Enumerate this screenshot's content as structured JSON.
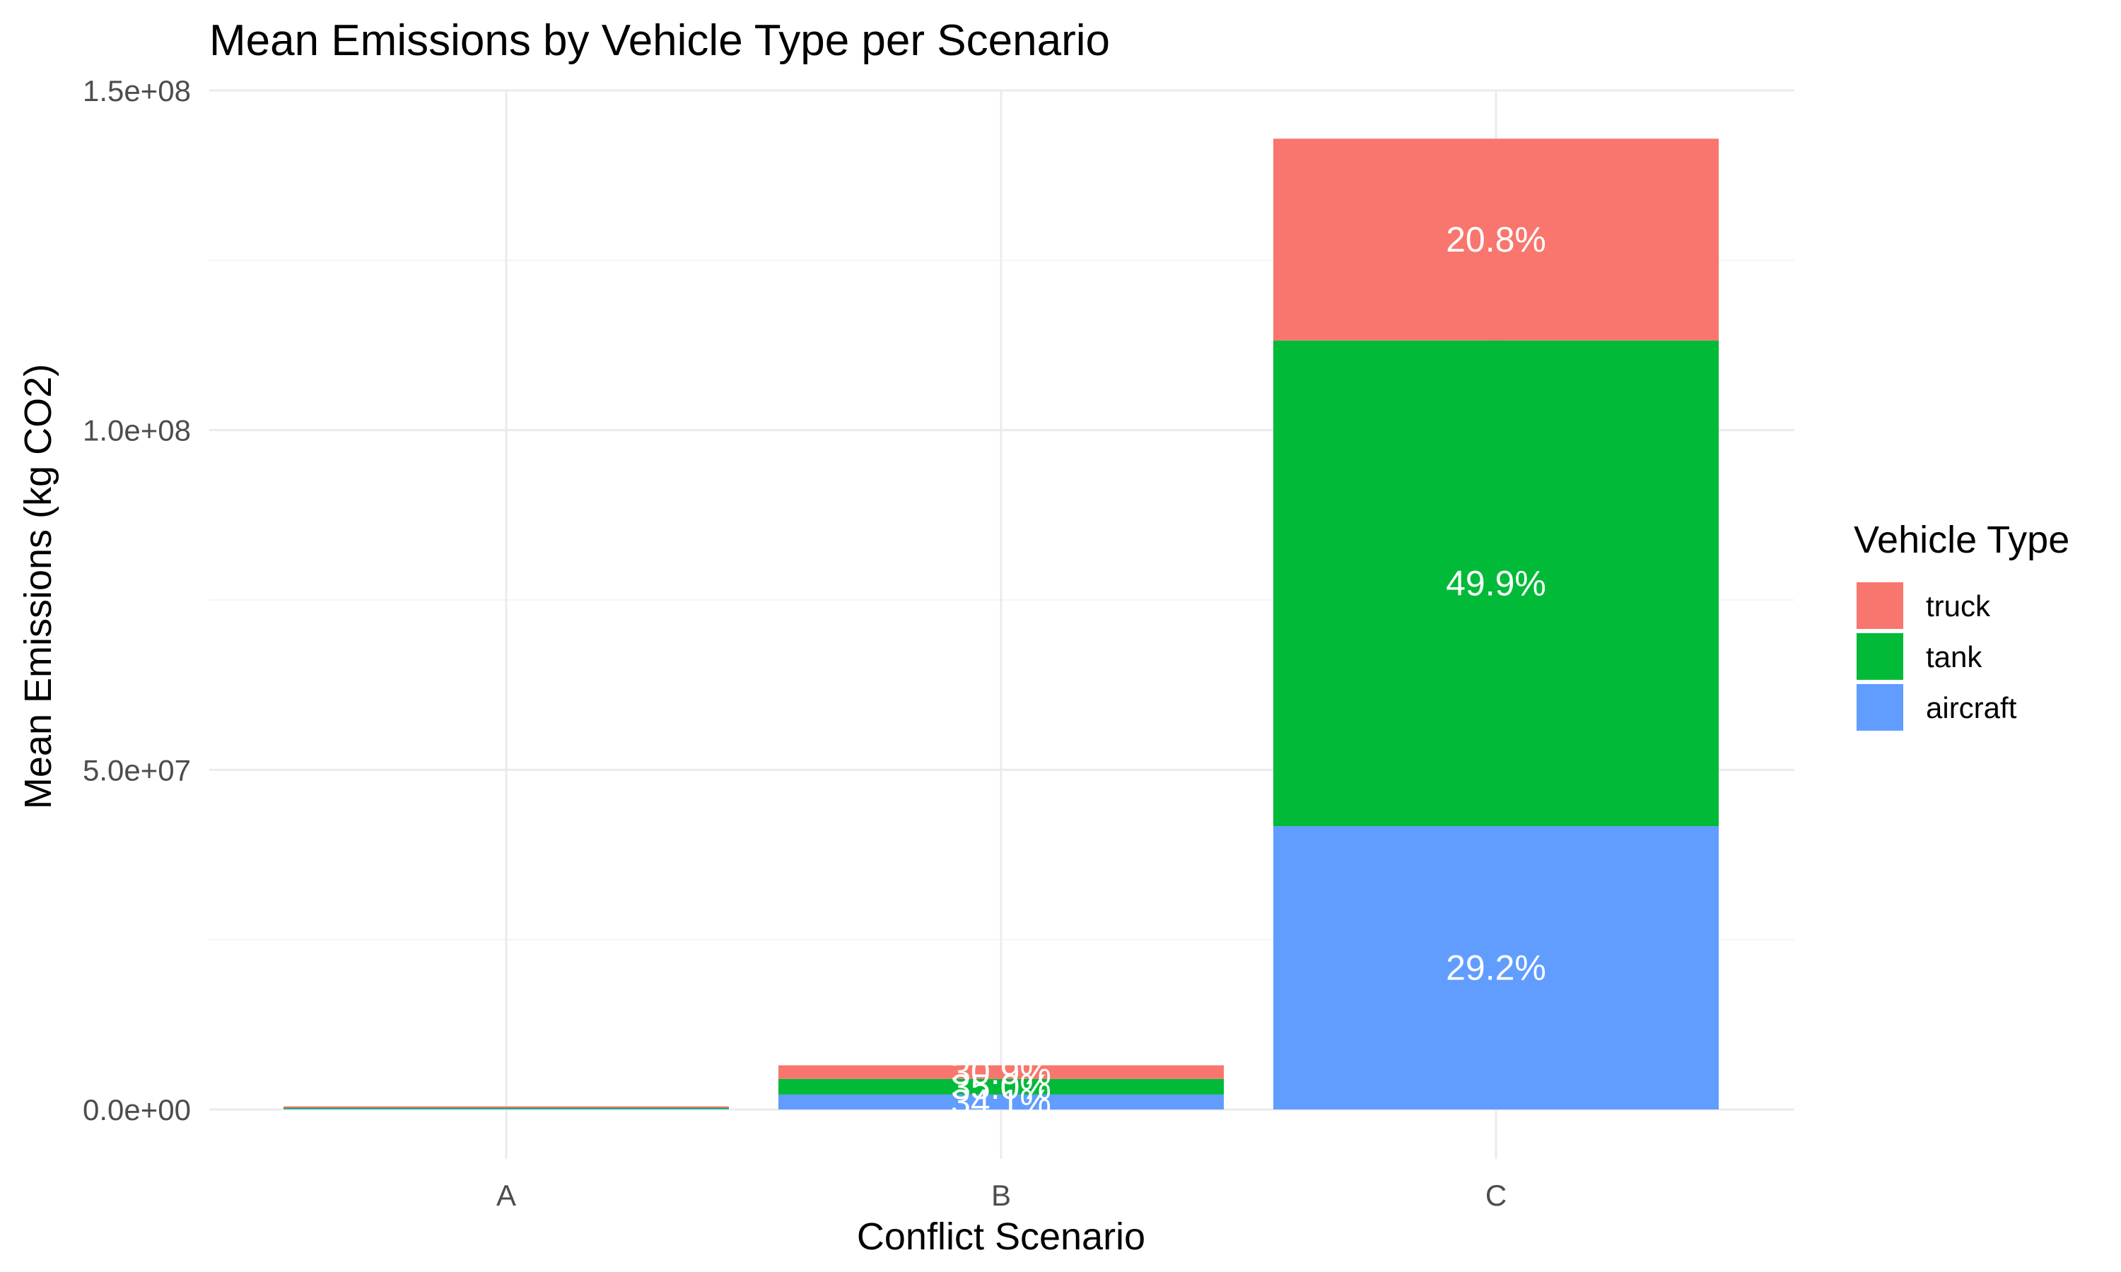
{
  "colors": {
    "truck": "#F8766D",
    "tank": "#00BA38",
    "aircraft": "#619CFF",
    "grid_major": "#EBEBEB",
    "grid_minor": "#F5F5F5"
  },
  "chart_data": {
    "type": "bar",
    "stacked": true,
    "title": "Mean Emissions by Vehicle Type per Scenario",
    "xlabel": "Conflict Scenario",
    "ylabel": "Mean Emissions (kg CO2)",
    "categories": [
      "A",
      "B",
      "C"
    ],
    "ylim": [
      0,
      150000000
    ],
    "yticks": [
      0,
      50000000,
      100000000,
      150000000
    ],
    "ytick_labels": [
      "0.0e+00",
      "5.0e+07",
      "1.0e+08",
      "1.5e+08"
    ],
    "grid": true,
    "legend_title": "Vehicle Type",
    "legend_position": "right",
    "legend_order": [
      "truck",
      "tank",
      "aircraft"
    ],
    "stack_order": [
      "aircraft",
      "tank",
      "truck"
    ],
    "series": [
      {
        "name": "aircraft",
        "values": [
          100000,
          2200000,
          41700000
        ],
        "labels": [
          "",
          "34.1%",
          "29.2%"
        ]
      },
      {
        "name": "tank",
        "values": [
          150000,
          2300000,
          71500000
        ],
        "labels": [
          "",
          "35.0%",
          "49.9%"
        ]
      },
      {
        "name": "truck",
        "values": [
          50000,
          2000000,
          29700000
        ],
        "labels": [
          "",
          "30.9%",
          "20.8%"
        ]
      }
    ]
  }
}
